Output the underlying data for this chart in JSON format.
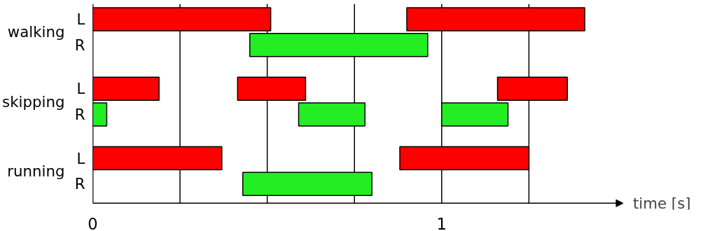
{
  "chart_data": {
    "type": "bar",
    "orientation": "horizontal",
    "categories": [
      "L",
      "R",
      "L",
      "R",
      "L",
      "R"
    ],
    "annotations": [
      "walking",
      "skipping",
      "running"
    ],
    "series": [
      {
        "colors": [
          "#ff0000",
          "#22ee22",
          "#ff0000",
          "#22ee22",
          "#ff0000",
          "#22ee22"
        ],
        "base": [
          0,
          0.45,
          0,
          0,
          0,
          0.43
        ],
        "values": [
          0.51,
          0.51,
          0.19,
          0.04,
          0.37,
          0.37
        ]
      },
      {
        "colors": [
          "#ff0000",
          "#22ee22",
          "#ff0000",
          "#22ee22",
          "#ff0000",
          "#22ee22"
        ],
        "base": [
          0.9,
          null,
          0.415,
          0.59,
          0.88,
          null
        ],
        "values": [
          0.51,
          null,
          0.195,
          0.19,
          0.37,
          null
        ]
      },
      {
        "colors": [
          "#ff0000",
          "#22ee22",
          "#ff0000",
          "#22ee22",
          "#ff0000",
          "#22ee22"
        ],
        "base": [
          null,
          null,
          1.16,
          1.0,
          null,
          null
        ],
        "values": [
          null,
          null,
          0.2,
          0.19,
          null,
          null
        ]
      }
    ],
    "xlabel": "time [s]",
    "xlim": [
      0,
      1.52
    ],
    "xticks": [
      0,
      {
        "value": 0.25,
        "label": null
      },
      {
        "value": 0.5,
        "label": null
      },
      {
        "value": 0.75,
        "label": null
      },
      1,
      {
        "value": 1.25,
        "label": null
      }
    ],
    "grid": "x"
  }
}
